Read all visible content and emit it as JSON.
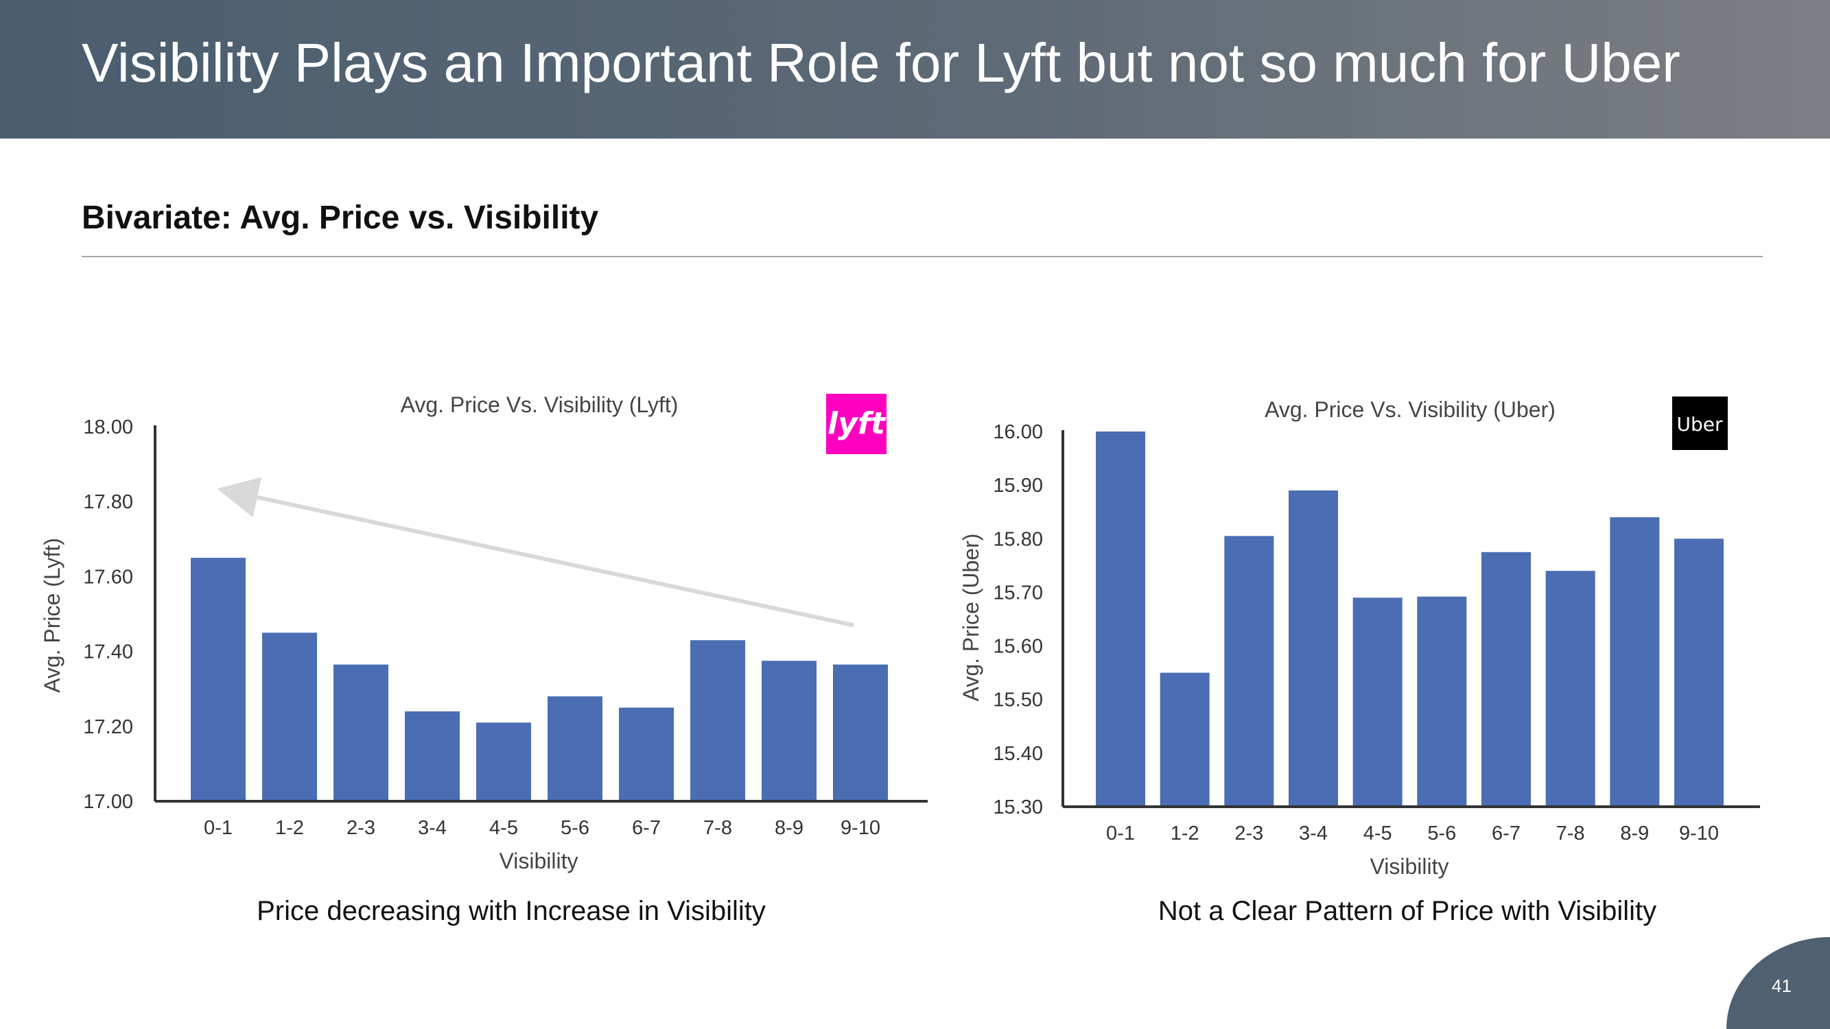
{
  "slide": {
    "title": "Visibility Plays an Important Role for Lyft but not so much for Uber",
    "section_title": "Bivariate: Avg. Price vs. Visibility",
    "page_number": "41"
  },
  "captions": {
    "left": "Price decreasing with Increase in Visibility",
    "right": "Not a Clear Pattern of Price with Visibility"
  },
  "logos": {
    "lyft": {
      "text": "lyft",
      "background": "#ff00bf",
      "color": "#ffffff"
    },
    "uber": {
      "text": "Uber",
      "background": "#000000",
      "color": "#ffffff"
    }
  },
  "colors": {
    "bar": "#4a6db3",
    "trend_arrow": "#d9d9d9",
    "header": "#4a5d6e"
  },
  "chart_data": [
    {
      "type": "bar",
      "title": "Avg. Price Vs. Visibility (Lyft)",
      "xlabel": "Visibility",
      "ylabel": "Avg. Price (Lyft)",
      "ylim": [
        17.0,
        18.0
      ],
      "yticks": [
        "17.00",
        "17.20",
        "17.40",
        "17.60",
        "17.80",
        "18.00"
      ],
      "categories": [
        "0-1",
        "1-2",
        "2-3",
        "3-4",
        "4-5",
        "5-6",
        "6-7",
        "7-8",
        "8-9",
        "9-10"
      ],
      "values": [
        17.65,
        17.45,
        17.365,
        17.24,
        17.21,
        17.28,
        17.25,
        17.43,
        17.375,
        17.365
      ],
      "annotation": {
        "type": "arrow",
        "from": [
          "9-10",
          17.47
        ],
        "to": [
          "0-1",
          17.83
        ]
      },
      "grid": false
    },
    {
      "type": "bar",
      "title": "Avg. Price Vs. Visibility (Uber)",
      "xlabel": "Visibility",
      "ylabel": "Avg. Price (Uber)",
      "ylim": [
        15.3,
        16.0
      ],
      "yticks": [
        "15.30",
        "15.40",
        "15.50",
        "15.60",
        "15.70",
        "15.80",
        "15.90",
        "16.00"
      ],
      "categories": [
        "0-1",
        "1-2",
        "2-3",
        "3-4",
        "4-5",
        "5-6",
        "6-7",
        "7-8",
        "8-9",
        "9-10"
      ],
      "values": [
        16.0,
        15.55,
        15.805,
        15.89,
        15.69,
        15.692,
        15.775,
        15.74,
        15.84,
        15.8
      ],
      "grid": false
    }
  ]
}
